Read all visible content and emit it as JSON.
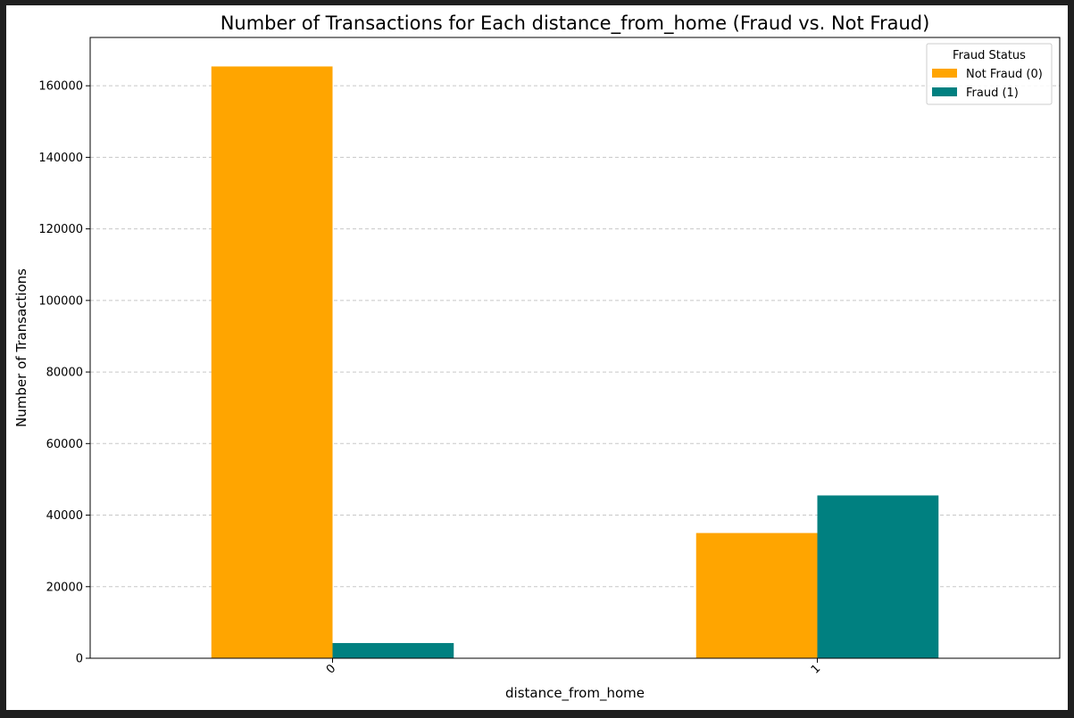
{
  "chart_data": {
    "type": "bar",
    "title": "Number of Transactions for Each distance_from_home (Fraud vs. Not Fraud)",
    "xlabel": "distance_from_home",
    "ylabel": "Number of Transactions",
    "categories": [
      "0",
      "1"
    ],
    "series": [
      {
        "name": "Not Fraud (0)",
        "values": [
          165400,
          35000
        ],
        "color": "#FFA500"
      },
      {
        "name": "Fraud (1)",
        "values": [
          4250,
          45500
        ],
        "color": "#008080"
      }
    ],
    "ylim": [
      0,
      173500
    ],
    "yticks": [
      0,
      20000,
      40000,
      60000,
      80000,
      100000,
      120000,
      140000,
      160000
    ],
    "grid": "y-dashed",
    "legend": {
      "title": "Fraud Status",
      "position": "top-right"
    }
  }
}
